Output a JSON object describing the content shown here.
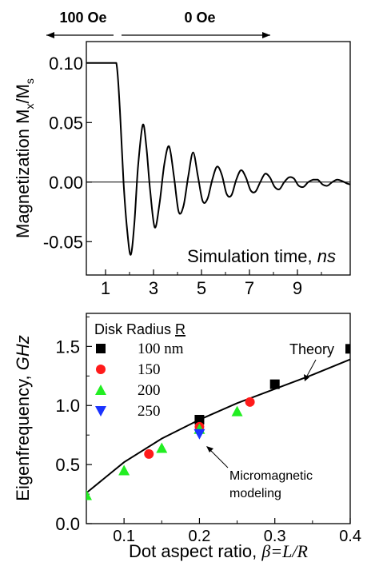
{
  "chart_data": [
    {
      "type": "line",
      "annotations": {
        "field_left": "100 Oe",
        "field_right": "0 Oe"
      },
      "ylabel_main": "Magnetization M",
      "ylabel_sub1": "x",
      "ylabel_sep": "/M",
      "ylabel_sub2": "s",
      "xlabel": "Simulation time, ",
      "xlabel_unit": "ns",
      "xlim": [
        0.2,
        11.2
      ],
      "ylim": [
        -0.078,
        0.118
      ],
      "xticks": [
        1,
        3,
        5,
        7,
        9
      ],
      "yticks": [
        {
          "v": 0.1,
          "label": "0.10"
        },
        {
          "v": 0.05,
          "label": "0.05"
        },
        {
          "v": 0.0,
          "label": "0.00"
        },
        {
          "v": -0.05,
          "label": "-0.05"
        }
      ],
      "zero_line": 0,
      "series": [
        {
          "x": [
            0.2,
            0.7,
            1.2,
            1.45,
            1.6,
            1.75,
            1.9,
            2.05,
            2.2,
            2.35,
            2.55,
            2.7,
            2.85,
            3.05,
            3.25,
            3.45,
            3.65,
            3.85,
            4.05,
            4.25,
            4.45,
            4.65,
            4.85,
            5.05,
            5.25,
            5.45,
            5.65,
            5.85,
            6.05,
            6.25,
            6.45,
            6.65,
            6.85,
            7.05,
            7.25,
            7.45,
            7.65,
            7.85,
            8.05,
            8.25,
            8.45,
            8.65,
            8.85,
            9.05,
            9.25,
            9.45,
            9.65,
            9.85,
            10.05,
            10.25,
            10.45,
            10.65,
            10.85,
            11.05,
            11.2
          ],
          "y": [
            0.1,
            0.1,
            0.1,
            0.1,
            0.06,
            0.0,
            -0.04,
            -0.061,
            -0.035,
            0.012,
            0.048,
            0.03,
            -0.005,
            -0.038,
            -0.018,
            0.015,
            0.03,
            0.005,
            -0.025,
            -0.02,
            0.005,
            0.025,
            0.005,
            -0.016,
            -0.014,
            0.002,
            0.013,
            0.006,
            -0.01,
            -0.011,
            0.002,
            0.01,
            0.004,
            -0.007,
            -0.008,
            0.0,
            0.007,
            0.004,
            -0.004,
            -0.006,
            0.0,
            0.004,
            0.003,
            -0.003,
            -0.004,
            0.0,
            0.002,
            0.002,
            -0.002,
            -0.003,
            0.0,
            0.002,
            0.001,
            -0.001,
            -0.002
          ]
        }
      ]
    },
    {
      "type": "scatter",
      "ylabel_main": "Eigenfrequency, ",
      "ylabel_unit": "GHz",
      "xlabel_main": "Dot aspect ratio, ",
      "xlabel_var": "β=L/R",
      "xlim": [
        0.05,
        0.4
      ],
      "ylim": [
        0.0,
        1.78
      ],
      "xticks": [
        {
          "v": 0.1,
          "label": "0.1"
        },
        {
          "v": 0.2,
          "label": "0.2"
        },
        {
          "v": 0.3,
          "label": "0.3"
        },
        {
          "v": 0.4,
          "label": "0.4"
        }
      ],
      "yticks": [
        {
          "v": 0.0,
          "label": "0.0"
        },
        {
          "v": 0.5,
          "label": "0.5"
        },
        {
          "v": 1.0,
          "label": "1.0"
        },
        {
          "v": 1.5,
          "label": "1.5"
        }
      ],
      "legend_title": "Disk Radius ",
      "legend_title_var": "R",
      "legend_position": "top-left",
      "annotations": {
        "theory": "Theory",
        "modeling_line1": "Micromagnetic",
        "modeling_line2": "modeling"
      },
      "theory_curve": {
        "x": [
          0.05,
          0.1,
          0.15,
          0.2,
          0.25,
          0.3,
          0.35,
          0.4
        ],
        "y": [
          0.26,
          0.52,
          0.72,
          0.88,
          1.02,
          1.14,
          1.26,
          1.39
        ]
      },
      "series": [
        {
          "name": "100 nm",
          "marker": "square",
          "color": "#000000",
          "points": [
            [
              0.2,
              0.88
            ],
            [
              0.3,
              1.18
            ],
            [
              0.4,
              1.48
            ]
          ]
        },
        {
          "name": "150",
          "marker": "circle",
          "color": "#ff1a1a",
          "points": [
            [
              0.133,
              0.59
            ],
            [
              0.2,
              0.82
            ],
            [
              0.267,
              1.03
            ]
          ]
        },
        {
          "name": "200",
          "marker": "triangle-up",
          "color": "#22ee22",
          "points": [
            [
              0.05,
              0.24
            ],
            [
              0.1,
              0.45
            ],
            [
              0.15,
              0.64
            ],
            [
              0.2,
              0.8
            ],
            [
              0.25,
              0.95
            ]
          ]
        },
        {
          "name": "250",
          "marker": "triangle-down",
          "color": "#1a33ff",
          "points": [
            [
              0.2,
              0.76
            ]
          ]
        }
      ]
    }
  ]
}
